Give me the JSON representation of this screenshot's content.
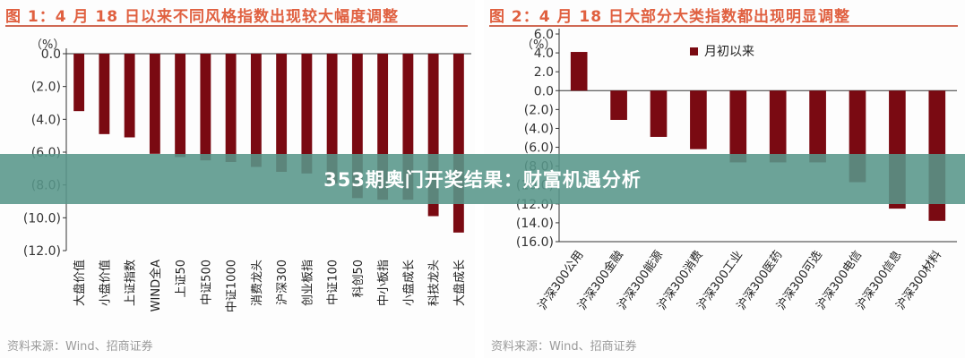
{
  "chart_data": [
    {
      "type": "bar",
      "title": "图 1：4 月 18 日以来不同风格指数出现较大幅度调整",
      "unit_label": "（%）",
      "categories": [
        "大盘价值",
        "小盘价值",
        "上证指数",
        "WIND全A",
        "上证50",
        "中证500",
        "中证1000",
        "消费龙头",
        "沪深300",
        "创业板指",
        "中证100",
        "科创50",
        "中小板指",
        "小盘成长",
        "科技龙头",
        "大盘成长"
      ],
      "values": [
        -3.5,
        -4.9,
        -5.1,
        -6.1,
        -6.3,
        -6.5,
        -6.6,
        -6.9,
        -7.2,
        -7.3,
        -7.9,
        -8.8,
        -8.9,
        -8.9,
        -9.9,
        -10.9
      ],
      "ylim": [
        -12,
        0
      ],
      "yticks": [
        "0.0",
        "(2.0)",
        "(4.0)",
        "(6.0)",
        "(8.0)",
        "(10.0)",
        "(12.0)"
      ],
      "grid": false,
      "bar_color": "#7a0a12",
      "source": "资料来源：Wind、招商证券"
    },
    {
      "type": "bar",
      "title": "图 2：4 月 18 日大部分大类指数都出现明显调整",
      "unit_label": "（%）",
      "legend": "月初以来",
      "categories": [
        "沪深300公用",
        "沪深300金融",
        "沪深300能源",
        "沪深300消费",
        "沪深300工业",
        "沪深300医药",
        "沪深300可选",
        "沪深300电信",
        "沪深300信息",
        "沪深300材料"
      ],
      "values": [
        4.1,
        -3.1,
        -4.9,
        -6.2,
        -7.6,
        -7.6,
        -7.6,
        -9.7,
        -12.5,
        -13.8
      ],
      "ylim": [
        -16,
        6
      ],
      "yticks": [
        "6.0",
        "4.0",
        "2.0",
        "0.0",
        "(2.0)",
        "(4.0)",
        "(6.0)",
        "(8.0)",
        "(10.0)",
        "(12.0)",
        "(14.0)",
        "(16.0)"
      ],
      "grid": false,
      "bar_color": "#7a0a12",
      "source": "资料来源：Wind、招商证券"
    }
  ],
  "banner": {
    "text": "353期奥门开奖结果：财富机遇分析"
  }
}
